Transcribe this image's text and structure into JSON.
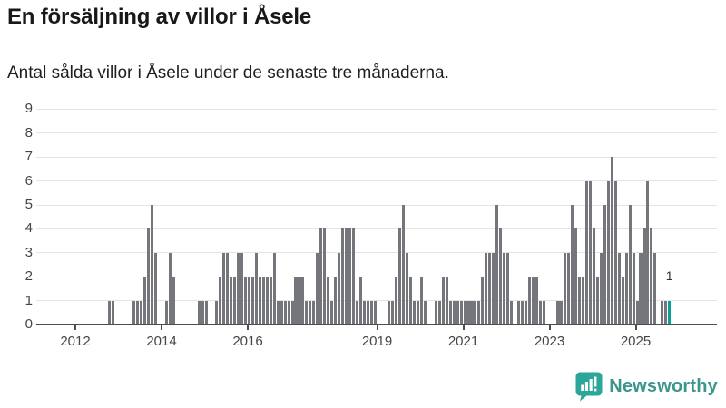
{
  "title": "En försäljning av villor i Åsele",
  "subtitle": "Antal sålda villor i Åsele under de senaste tre månaderna.",
  "annotation": {
    "label": "1"
  },
  "branding": {
    "name": "Newsworthy",
    "icon": "speech-bubble-bar-chart-icon"
  },
  "colors": {
    "bar": "#75757c",
    "highlight": "#0aa19c",
    "grid": "#e4e4e4",
    "axis": "#4d4d4d",
    "axis_text": "#454545",
    "title_text": "#181818",
    "logo_teal": "#2aa69a",
    "logo_text": "#3b968e"
  },
  "chart_data": {
    "type": "bar",
    "title": "En försäljning av villor i Åsele",
    "subtitle": "Antal sålda villor i Åsele under de senaste tre månaderna.",
    "xlabel": "",
    "ylabel": "",
    "unit_interval": "month",
    "ylim": [
      0,
      9
    ],
    "y_ticks": [
      0,
      1,
      2,
      3,
      4,
      5,
      6,
      7,
      8,
      9
    ],
    "x_ticks": [
      {
        "label": "2012",
        "year": 2012
      },
      {
        "label": "2014",
        "year": 2014
      },
      {
        "label": "2016",
        "year": 2016
      },
      {
        "label": "2019",
        "year": 2019
      },
      {
        "label": "2021",
        "year": 2021
      },
      {
        "label": "2023",
        "year": 2023
      },
      {
        "label": "2025",
        "year": 2025
      }
    ],
    "x_range_years": [
      2011.1,
      2026.0
    ],
    "grid": true,
    "legend": false,
    "highlight_last": true,
    "last_value_label": "1",
    "series": [
      [
        "2012-10",
        1
      ],
      [
        "2012-11",
        1
      ],
      [
        "2013-05",
        1
      ],
      [
        "2013-06",
        1
      ],
      [
        "2013-07",
        1
      ],
      [
        "2013-08",
        2
      ],
      [
        "2013-09",
        4
      ],
      [
        "2013-10",
        5
      ],
      [
        "2013-11",
        3
      ],
      [
        "2014-02",
        1
      ],
      [
        "2014-03",
        3
      ],
      [
        "2014-04",
        2
      ],
      [
        "2014-11",
        1
      ],
      [
        "2014-12",
        1
      ],
      [
        "2015-01",
        1
      ],
      [
        "2015-04",
        1
      ],
      [
        "2015-05",
        2
      ],
      [
        "2015-06",
        3
      ],
      [
        "2015-07",
        3
      ],
      [
        "2015-08",
        2
      ],
      [
        "2015-09",
        2
      ],
      [
        "2015-10",
        3
      ],
      [
        "2015-11",
        3
      ],
      [
        "2015-12",
        2
      ],
      [
        "2016-01",
        2
      ],
      [
        "2016-02",
        2
      ],
      [
        "2016-03",
        3
      ],
      [
        "2016-04",
        2
      ],
      [
        "2016-05",
        2
      ],
      [
        "2016-06",
        2
      ],
      [
        "2016-07",
        2
      ],
      [
        "2016-08",
        3
      ],
      [
        "2016-09",
        1
      ],
      [
        "2016-10",
        1
      ],
      [
        "2016-11",
        1
      ],
      [
        "2016-12",
        1
      ],
      [
        "2017-01",
        1
      ],
      [
        "2017-02",
        2
      ],
      [
        "2017-03",
        2
      ],
      [
        "2017-04",
        2
      ],
      [
        "2017-05",
        1
      ],
      [
        "2017-06",
        1
      ],
      [
        "2017-07",
        1
      ],
      [
        "2017-08",
        3
      ],
      [
        "2017-09",
        4
      ],
      [
        "2017-10",
        4
      ],
      [
        "2017-11",
        2
      ],
      [
        "2017-12",
        1
      ],
      [
        "2018-01",
        2
      ],
      [
        "2018-02",
        3
      ],
      [
        "2018-03",
        4
      ],
      [
        "2018-04",
        4
      ],
      [
        "2018-05",
        4
      ],
      [
        "2018-06",
        4
      ],
      [
        "2018-07",
        1
      ],
      [
        "2018-08",
        2
      ],
      [
        "2018-09",
        1
      ],
      [
        "2018-10",
        1
      ],
      [
        "2018-11",
        1
      ],
      [
        "2018-12",
        1
      ],
      [
        "2019-04",
        1
      ],
      [
        "2019-05",
        1
      ],
      [
        "2019-06",
        2
      ],
      [
        "2019-07",
        4
      ],
      [
        "2019-08",
        5
      ],
      [
        "2019-09",
        3
      ],
      [
        "2019-10",
        2
      ],
      [
        "2019-11",
        1
      ],
      [
        "2019-12",
        1
      ],
      [
        "2020-01",
        2
      ],
      [
        "2020-02",
        1
      ],
      [
        "2020-05",
        1
      ],
      [
        "2020-06",
        1
      ],
      [
        "2020-07",
        2
      ],
      [
        "2020-08",
        2
      ],
      [
        "2020-09",
        1
      ],
      [
        "2020-10",
        1
      ],
      [
        "2020-11",
        1
      ],
      [
        "2020-12",
        1
      ],
      [
        "2021-01",
        1
      ],
      [
        "2021-02",
        1
      ],
      [
        "2021-03",
        1
      ],
      [
        "2021-04",
        1
      ],
      [
        "2021-05",
        1
      ],
      [
        "2021-06",
        2
      ],
      [
        "2021-07",
        3
      ],
      [
        "2021-08",
        3
      ],
      [
        "2021-09",
        3
      ],
      [
        "2021-10",
        5
      ],
      [
        "2021-11",
        4
      ],
      [
        "2021-12",
        3
      ],
      [
        "2022-01",
        3
      ],
      [
        "2022-02",
        1
      ],
      [
        "2022-04",
        1
      ],
      [
        "2022-05",
        1
      ],
      [
        "2022-06",
        1
      ],
      [
        "2022-07",
        2
      ],
      [
        "2022-08",
        2
      ],
      [
        "2022-09",
        2
      ],
      [
        "2022-10",
        1
      ],
      [
        "2022-11",
        1
      ],
      [
        "2023-03",
        1
      ],
      [
        "2023-04",
        1
      ],
      [
        "2023-05",
        3
      ],
      [
        "2023-06",
        3
      ],
      [
        "2023-07",
        5
      ],
      [
        "2023-08",
        4
      ],
      [
        "2023-09",
        2
      ],
      [
        "2023-10",
        2
      ],
      [
        "2023-11",
        6
      ],
      [
        "2023-12",
        6
      ],
      [
        "2024-01",
        4
      ],
      [
        "2024-02",
        2
      ],
      [
        "2024-03",
        3
      ],
      [
        "2024-04",
        5
      ],
      [
        "2024-05",
        6
      ],
      [
        "2024-06",
        7
      ],
      [
        "2024-07",
        6
      ],
      [
        "2024-08",
        3
      ],
      [
        "2024-09",
        2
      ],
      [
        "2024-10",
        3
      ],
      [
        "2024-11",
        5
      ],
      [
        "2024-12",
        3
      ],
      [
        "2025-01",
        1
      ],
      [
        "2025-02",
        3
      ],
      [
        "2025-03",
        4
      ],
      [
        "2025-04",
        6
      ],
      [
        "2025-05",
        4
      ],
      [
        "2025-06",
        3
      ],
      [
        "2025-08",
        1
      ],
      [
        "2025-09",
        1
      ],
      [
        "2025-10",
        1
      ]
    ]
  }
}
